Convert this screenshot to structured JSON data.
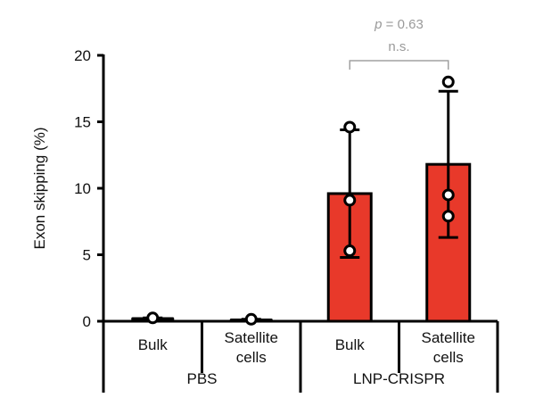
{
  "chart_data": {
    "type": "bar",
    "title": "",
    "ylabel": "Exon skipping (%)",
    "xlabel": "",
    "ylim": [
      0,
      20
    ],
    "yticks": [
      0,
      5,
      10,
      15,
      20
    ],
    "grid": false,
    "bar_color": "#e8392a",
    "groups": [
      {
        "label": "PBS",
        "categories": [
          "Bulk",
          "Satellite\ncells"
        ]
      },
      {
        "label": "LNP-CRISPR",
        "categories": [
          "Bulk",
          "Satellite\ncells"
        ]
      }
    ],
    "bars": [
      {
        "group": "PBS",
        "category": "Bulk",
        "value": 0.2,
        "error": 0.05,
        "points": [
          0.25
        ],
        "filled": false
      },
      {
        "group": "PBS",
        "category": "Satellite cells",
        "value": 0.1,
        "error": 0.05,
        "points": [
          0.15
        ],
        "filled": false
      },
      {
        "group": "LNP-CRISPR",
        "category": "Bulk",
        "value": 9.6,
        "error": 4.8,
        "points": [
          14.6,
          9.1,
          5.3
        ],
        "filled": true
      },
      {
        "group": "LNP-CRISPR",
        "category": "Satellite cells",
        "value": 11.8,
        "error": 5.5,
        "points": [
          18.0,
          9.5,
          7.9
        ],
        "filled": true
      }
    ],
    "annotations": [
      {
        "between": [
          2,
          3
        ],
        "p_text": "p = 0.63",
        "label": "n.s."
      }
    ]
  }
}
